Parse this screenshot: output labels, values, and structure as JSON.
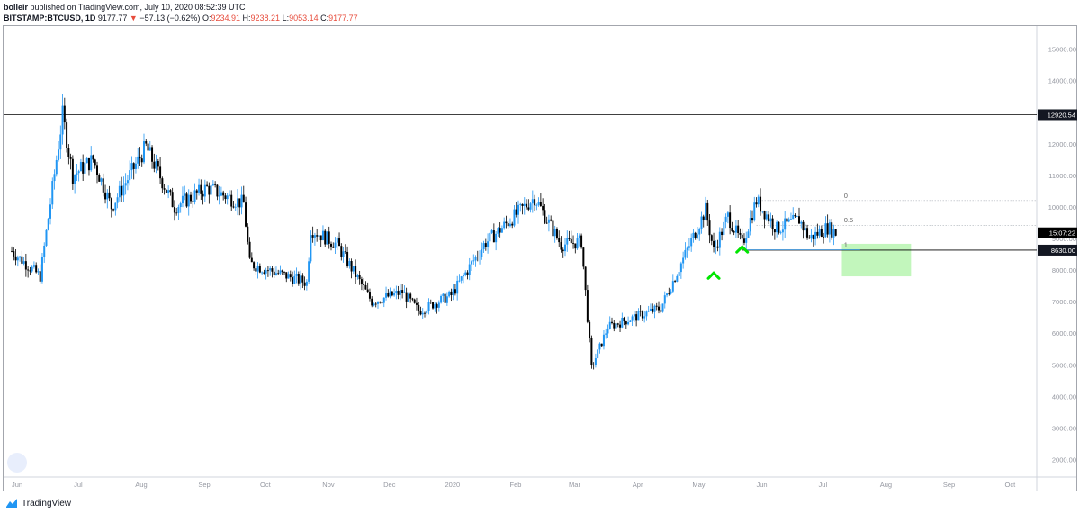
{
  "header": {
    "author": "bolleir",
    "published_text": "published on TradingView.com, July 10, 2020 08:52:39 UTC",
    "symbol": "BITSTAMP:BTCUSD, 1D",
    "last": "9177.77",
    "change_arrow": "▼",
    "change": "−57.13 (−0.62%)",
    "o_label": "O:",
    "o": "9234.91",
    "h_label": "H:",
    "h": "9238.21",
    "l_label": "L:",
    "l": "9053.14",
    "c_label": "C:",
    "c": "9177.77"
  },
  "footer": {
    "brand": "TradingView"
  },
  "colors": {
    "up": "#2196f3",
    "down": "#000000",
    "highlight_box": "#b7f5b0",
    "arrow": "#00e600",
    "axis_text": "#9598a1"
  },
  "chart_data": {
    "type": "candlestick",
    "title": "",
    "xlabel": "",
    "ylabel": "",
    "ylim": [
      1500,
      15700
    ],
    "y_ticks": [
      "2000.00",
      "3000.00",
      "4000.00",
      "5000.00",
      "6000.00",
      "7000.00",
      "8000.00",
      "9000.00",
      "10000.00",
      "11000.00",
      "12000.00",
      "13000.00",
      "14000.00",
      "15000.00"
    ],
    "x_ticks": [
      "Jun",
      "Jul",
      "Aug",
      "Sep",
      "Oct",
      "Nov",
      "Dec",
      "2020",
      "Feb",
      "Mar",
      "Apr",
      "May",
      "Jun",
      "Jul",
      "Aug",
      "Sep",
      "Oct"
    ],
    "price_labels": [
      {
        "text": "12920.54",
        "value": 12920.54
      },
      {
        "text": "15:07:22",
        "value": 9177.77
      },
      {
        "text": "8630.00",
        "value": 8630
      }
    ],
    "horizontal_lines": [
      12920.54,
      8630
    ],
    "fib_levels": [
      {
        "label": "0",
        "value": 10200
      },
      {
        "label": "0.5",
        "value": 9420
      },
      {
        "label": "1",
        "value": 8640
      }
    ],
    "target_box": {
      "from": "2020-07-13",
      "to": "2020-08-16",
      "top": 8830,
      "bottom": 7800
    },
    "arrows": [
      {
        "date": "2020-05-11",
        "value": 7850
      },
      {
        "date": "2020-05-25",
        "value": 8680
      }
    ],
    "key_points": [
      {
        "date": "2019-06-01",
        "close": 8600
      },
      {
        "date": "2019-06-15",
        "close": 7800
      },
      {
        "date": "2019-06-26",
        "close": 12900
      },
      {
        "date": "2019-07-01",
        "close": 11000
      },
      {
        "date": "2019-07-11",
        "close": 11500
      },
      {
        "date": "2019-07-20",
        "close": 10000
      },
      {
        "date": "2019-08-06",
        "close": 11900
      },
      {
        "date": "2019-08-20",
        "close": 10000
      },
      {
        "date": "2019-09-05",
        "close": 10600
      },
      {
        "date": "2019-09-23",
        "close": 10100
      },
      {
        "date": "2019-09-26",
        "close": 8200
      },
      {
        "date": "2019-10-24",
        "close": 7600
      },
      {
        "date": "2019-10-26",
        "close": 9300
      },
      {
        "date": "2019-11-08",
        "close": 8800
      },
      {
        "date": "2019-11-25",
        "close": 7000
      },
      {
        "date": "2019-12-10",
        "close": 7300
      },
      {
        "date": "2019-12-18",
        "close": 6700
      },
      {
        "date": "2020-01-03",
        "close": 7200
      },
      {
        "date": "2020-01-19",
        "close": 8800
      },
      {
        "date": "2020-02-13",
        "close": 10300
      },
      {
        "date": "2020-02-26",
        "close": 8800
      },
      {
        "date": "2020-03-07",
        "close": 8900
      },
      {
        "date": "2020-03-12",
        "close": 4900
      },
      {
        "date": "2020-03-20",
        "close": 6200
      },
      {
        "date": "2020-04-15",
        "close": 6800
      },
      {
        "date": "2020-05-07",
        "close": 9900
      },
      {
        "date": "2020-05-11",
        "close": 8600
      },
      {
        "date": "2020-05-18",
        "close": 9700
      },
      {
        "date": "2020-05-25",
        "close": 8800
      },
      {
        "date": "2020-06-01",
        "close": 10200
      },
      {
        "date": "2020-06-11",
        "close": 9300
      },
      {
        "date": "2020-06-22",
        "close": 9600
      },
      {
        "date": "2020-06-27",
        "close": 9000
      },
      {
        "date": "2020-07-06",
        "close": 9350
      },
      {
        "date": "2020-07-10",
        "close": 9177.77
      }
    ]
  }
}
